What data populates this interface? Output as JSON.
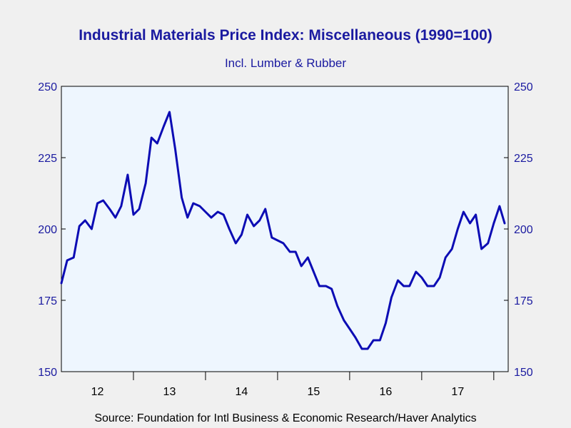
{
  "title": "Industrial Materials Price Index: Miscellaneous (1990=100)",
  "subtitle": "Incl. Lumber & Rubber",
  "source": "Source:  Foundation for Intl Business & Economic Research/Haver Analytics",
  "colors": {
    "line": "#0c0cb4",
    "text": "#1a1aa0",
    "plot_bg": "#eef6fe",
    "page_bg": "#f0f0f0"
  },
  "chart_data": {
    "type": "line",
    "title": "Industrial Materials Price Index: Miscellaneous (1990=100)",
    "subtitle": "Incl. Lumber & Rubber",
    "xlabel": "",
    "ylabel": "",
    "ylim": [
      150,
      250
    ],
    "y_ticks": [
      "150",
      "175",
      "200",
      "225",
      "250"
    ],
    "y_ticks_right": [
      "150",
      "175",
      "200",
      "225",
      "250"
    ],
    "x_range": [
      2011.5,
      2017.7
    ],
    "x_tick_labels": [
      {
        "label": "12",
        "year": 2012
      },
      {
        "label": "13",
        "year": 2013
      },
      {
        "label": "14",
        "year": 2014
      },
      {
        "label": "15",
        "year": 2015
      },
      {
        "label": "16",
        "year": 2016
      },
      {
        "label": "17",
        "year": 2017
      }
    ],
    "grid": false,
    "series": [
      {
        "x": [
          2011.5,
          2011.58,
          2011.67,
          2011.75,
          2011.83,
          2011.92,
          2012.0,
          2012.08,
          2012.17,
          2012.25,
          2012.33,
          2012.42,
          2012.5,
          2012.58,
          2012.67,
          2012.75,
          2012.83,
          2012.92,
          2013.0,
          2013.08,
          2013.17,
          2013.25,
          2013.33,
          2013.42,
          2013.5,
          2013.58,
          2013.67,
          2013.75,
          2013.83,
          2013.92,
          2014.0,
          2014.08,
          2014.17,
          2014.25,
          2014.33,
          2014.42,
          2014.5,
          2014.58,
          2014.67,
          2014.75,
          2014.83,
          2014.92,
          2015.0,
          2015.08,
          2015.17,
          2015.25,
          2015.33,
          2015.42,
          2015.5,
          2015.58,
          2015.67,
          2015.75,
          2015.83,
          2015.92,
          2016.0,
          2016.08,
          2016.17,
          2016.25,
          2016.33,
          2016.42,
          2016.5,
          2016.58,
          2016.67,
          2016.75,
          2016.83,
          2016.92,
          2017.0,
          2017.08,
          2017.17,
          2017.25,
          2017.33,
          2017.42,
          2017.5,
          2017.58,
          2017.65
        ],
        "values": [
          181,
          189,
          190,
          201,
          203,
          200,
          209,
          210,
          207,
          204,
          208,
          219,
          205,
          207,
          216,
          232,
          230,
          236,
          241,
          228,
          211,
          204,
          209,
          208,
          206,
          204,
          206,
          205,
          200,
          195,
          198,
          205,
          201,
          203,
          207,
          197,
          196,
          195,
          192,
          192,
          187,
          190,
          185,
          180,
          180,
          179,
          173,
          168,
          165,
          162,
          158,
          158,
          161,
          161,
          167,
          176,
          182,
          180,
          180,
          185,
          183,
          180,
          180,
          183,
          190,
          193,
          200,
          206,
          202,
          205,
          193,
          195,
          202,
          208,
          202
        ]
      }
    ]
  }
}
